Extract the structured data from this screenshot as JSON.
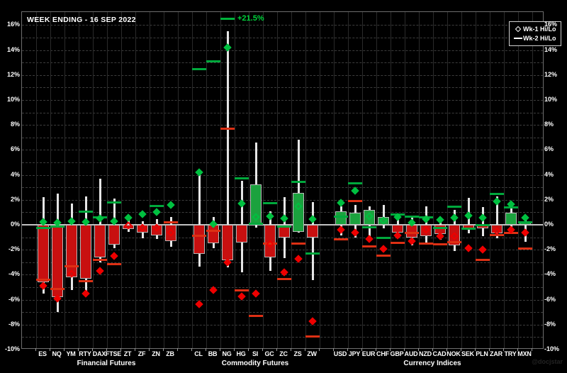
{
  "window": {
    "title": "WEEK ENDING - 16 SEP 2022"
  },
  "legend": {
    "items": [
      {
        "symbol": "diamond-icon",
        "label": "Wk-1 Hi/Lo"
      },
      {
        "symbol": "dash-icon",
        "label": "Wk-2 Hi/Lo"
      }
    ]
  },
  "annotation": {
    "label": "+21.5%",
    "category": "NG",
    "value": 21.5,
    "meaning": "Wk-2 high clipped above axis"
  },
  "watermark": "@docjstar",
  "colors": {
    "background": "#000000",
    "up": "#1ba23e",
    "down": "#c81010",
    "wk1_hi": "#00c040",
    "wk1_lo": "#ee0000",
    "wk2_hi": "#00a83c",
    "wk2_lo": "#dd3014",
    "whisker": "#e6e6e6",
    "annotation": "#00d43c"
  },
  "axis": {
    "y_ticks_pct": [
      16,
      14,
      12,
      10,
      8,
      6,
      4,
      2,
      0,
      -2,
      -4,
      -6,
      -8,
      -10
    ],
    "y_min": -10,
    "y_max": 16.5,
    "gridline_step_pct": 1,
    "tick_label_suffix": "%"
  },
  "chart_data": {
    "type": "candlestick-range",
    "unit": "percent weekly change",
    "description": "Weekly % change bars (open-to-close vs prior close) with current-week hi/lo whisker, Wk-1 hi/lo diamonds and Wk-2 hi/lo dashes",
    "groups": [
      {
        "label": "Financial Futures",
        "instruments": [
          {
            "sym": "ES",
            "open": 0,
            "close": -4.6,
            "hi": 2.2,
            "lo": -5.5,
            "wk1_hi": 0.2,
            "wk1_lo": -4.9,
            "wk2_hi": -0.2,
            "wk2_lo": -4.4
          },
          {
            "sym": "NQ",
            "open": 0,
            "close": -5.8,
            "hi": 2.5,
            "lo": -7.0,
            "wk1_hi": 0.15,
            "wk1_lo": -5.9,
            "wk2_hi": -0.1,
            "wk2_lo": -5.1
          },
          {
            "sym": "YM",
            "open": 0,
            "close": -4.2,
            "hi": 1.7,
            "lo": -5.2,
            "wk1_hi": 0.3,
            "wk1_lo": -3.9,
            "wk2_hi": null,
            "wk2_lo": -3.3
          },
          {
            "sym": "RTY",
            "open": 0,
            "close": -4.3,
            "hi": 2.3,
            "lo": -5.3,
            "wk1_hi": 0.2,
            "wk1_lo": -5.5,
            "wk2_hi": 1.1,
            "wk2_lo": -4.5
          },
          {
            "sym": "DAX",
            "open": 0,
            "close": -2.6,
            "hi": 3.7,
            "lo": -3.0,
            "wk1_hi": 0.5,
            "wk1_lo": -3.7,
            "wk2_hi": 0.6,
            "wk2_lo": -2.8
          },
          {
            "sym": "FTSE",
            "open": 0,
            "close": -1.6,
            "hi": 2.1,
            "lo": -1.9,
            "wk1_hi": 0.3,
            "wk1_lo": -2.5,
            "wk2_hi": 1.8,
            "wk2_lo": -3.1
          },
          {
            "sym": "ZT",
            "open": 0,
            "close": -0.35,
            "hi": 0.4,
            "lo": -0.55,
            "wk1_hi": 0.55,
            "wk1_lo": -0.05,
            "wk2_hi": null,
            "wk2_lo": null
          },
          {
            "sym": "ZF",
            "open": 0,
            "close": -0.65,
            "hi": 0.3,
            "lo": -1.1,
            "wk1_hi": 0.85,
            "wk1_lo": -0.2,
            "wk2_hi": null,
            "wk2_lo": null
          },
          {
            "sym": "ZN",
            "open": 0,
            "close": -0.85,
            "hi": 0.45,
            "lo": -1.15,
            "wk1_hi": 1.0,
            "wk1_lo": -0.25,
            "wk2_hi": 1.55,
            "wk2_lo": null
          },
          {
            "sym": "ZB",
            "open": 0,
            "close": -1.3,
            "hi": 0.65,
            "lo": -1.75,
            "wk1_hi": 1.6,
            "wk1_lo": -0.6,
            "wk2_hi": null,
            "wk2_lo": 0.2
          }
        ]
      },
      {
        "label": "Commodity Futures",
        "instruments": [
          {
            "sym": "CL",
            "open": 0,
            "close": -2.35,
            "hi": 4.1,
            "lo": -3.35,
            "wk1_hi": 4.2,
            "wk1_lo": -6.35,
            "wk2_hi": 12.5,
            "wk2_lo": -0.85
          },
          {
            "sym": "BB",
            "open": 0,
            "close": -1.5,
            "hi": 0.6,
            "lo": -1.9,
            "wk1_hi": 0.05,
            "wk1_lo": -5.2,
            "wk2_hi": 13.1,
            "wk2_lo": -0.45
          },
          {
            "sym": "NG",
            "open": 0,
            "close": -2.85,
            "hi": 15.5,
            "lo": -3.4,
            "wk1_hi": 14.2,
            "wk1_lo": -3.0,
            "wk2_hi": 21.5,
            "wk2_lo": 7.75
          },
          {
            "sym": "HG",
            "open": 0,
            "close": -1.4,
            "hi": 3.55,
            "lo": -3.8,
            "wk1_hi": 1.7,
            "wk1_lo": -5.75,
            "wk2_hi": 3.75,
            "wk2_lo": -5.2
          },
          {
            "sym": "SI",
            "open": 0,
            "close": 3.25,
            "hi": 6.6,
            "lo": -0.2,
            "wk1_hi": 0.6,
            "wk1_lo": -5.5,
            "wk2_hi": 0.1,
            "wk2_lo": -7.25
          },
          {
            "sym": "GC",
            "open": 0,
            "close": -2.6,
            "hi": 1.1,
            "lo": -3.7,
            "wk1_hi": 0.7,
            "wk1_lo": -1.55,
            "wk2_hi": 1.75,
            "wk2_lo": -1.5
          },
          {
            "sym": "ZC",
            "open": 0,
            "close": -1.0,
            "hi": 2.2,
            "lo": -2.65,
            "wk1_hi": 0.5,
            "wk1_lo": -3.8,
            "wk2_hi": -0.1,
            "wk2_lo": -4.3
          },
          {
            "sym": "ZS",
            "open": -0.55,
            "close": 2.55,
            "hi": 6.8,
            "lo": -0.65,
            "wk1_hi": 1.5,
            "wk1_lo": -2.75,
            "wk2_hi": 3.45,
            "wk2_lo": -1.5
          },
          {
            "sym": "ZW",
            "open": 0,
            "close": -1.0,
            "hi": 1.8,
            "lo": -4.45,
            "wk1_hi": 0.45,
            "wk1_lo": -7.75,
            "wk2_hi": -2.3,
            "wk2_lo": -8.9
          }
        ]
      },
      {
        "label": "Currency Indices",
        "instruments": [
          {
            "sym": "USD",
            "open": 0,
            "close": 1.1,
            "hi": 1.45,
            "lo": -0.85,
            "wk1_hi": 1.75,
            "wk1_lo": -0.4,
            "wk2_hi": 0.7,
            "wk2_lo": -1.15
          },
          {
            "sym": "JPY",
            "open": 0,
            "close": 0.95,
            "hi": 1.6,
            "lo": -1.0,
            "wk1_hi": 2.7,
            "wk1_lo": -0.6,
            "wk2_hi": 3.35,
            "wk2_lo": 1.95
          },
          {
            "sym": "EUR",
            "open": 0,
            "close": 1.2,
            "hi": 1.5,
            "lo": -1.25,
            "wk1_hi": 0.7,
            "wk1_lo": -1.15,
            "wk2_hi": -0.15,
            "wk2_lo": -1.7
          },
          {
            "sym": "CHF",
            "open": 0,
            "close": 0.65,
            "hi": 1.6,
            "lo": -0.3,
            "wk1_hi": 0.35,
            "wk1_lo": -1.95,
            "wk2_hi": -1.05,
            "wk2_lo": -2.45
          },
          {
            "sym": "GBP",
            "open": 0,
            "close": -0.6,
            "hi": 0.8,
            "lo": -1.1,
            "wk1_hi": 0.65,
            "wk1_lo": -0.85,
            "wk2_hi": 0.85,
            "wk2_lo": -1.4
          },
          {
            "sym": "AUD",
            "open": 0,
            "close": -1.05,
            "hi": 0.55,
            "lo": -1.65,
            "wk1_hi": 0.15,
            "wk1_lo": -1.3,
            "wk2_hi": 0.7,
            "wk2_lo": -0.65
          },
          {
            "sym": "NZD",
            "open": 0,
            "close": -0.9,
            "hi": 1.45,
            "lo": -1.4,
            "wk1_hi": 0.45,
            "wk1_lo": -0.4,
            "wk2_hi": 0.6,
            "wk2_lo": -1.5
          },
          {
            "sym": "CAD",
            "open": 0,
            "close": -0.75,
            "hi": 0.5,
            "lo": -1.2,
            "wk1_hi": 0.4,
            "wk1_lo": -0.9,
            "wk2_hi": -0.25,
            "wk2_lo": -1.55
          },
          {
            "sym": "NOK",
            "open": 0,
            "close": -1.65,
            "hi": 1.2,
            "lo": -2.1,
            "wk1_hi": 0.55,
            "wk1_lo": -0.9,
            "wk2_hi": 1.5,
            "wk2_lo": -1.35
          },
          {
            "sym": "SEK",
            "open": 0,
            "close": -0.4,
            "hi": 2.15,
            "lo": -0.7,
            "wk1_hi": 0.75,
            "wk1_lo": -1.85,
            "wk2_hi": -0.3,
            "wk2_lo": null
          },
          {
            "sym": "PLN",
            "open": 0,
            "close": -0.3,
            "hi": 1.4,
            "lo": -0.9,
            "wk1_hi": 0.55,
            "wk1_lo": -2.0,
            "wk2_hi": 0.0,
            "wk2_lo": -2.8
          },
          {
            "sym": "ZAR",
            "open": 0,
            "close": -0.7,
            "hi": 2.3,
            "lo": -1.1,
            "wk1_hi": 1.85,
            "wk1_lo": -0.5,
            "wk2_hi": 2.5,
            "wk2_lo": -0.8
          },
          {
            "sym": "TRY",
            "open": 0,
            "close": 0.95,
            "hi": 1.4,
            "lo": -0.5,
            "wk1_hi": 1.65,
            "wk1_lo": -0.4,
            "wk2_hi": 1.4,
            "wk2_lo": -0.6
          },
          {
            "sym": "MXN",
            "open": 0,
            "close": 0.15,
            "hi": 0.6,
            "lo": -1.35,
            "wk1_hi": 0.55,
            "wk1_lo": -0.6,
            "wk2_hi": 0.2,
            "wk2_lo": -1.9
          }
        ]
      }
    ]
  }
}
